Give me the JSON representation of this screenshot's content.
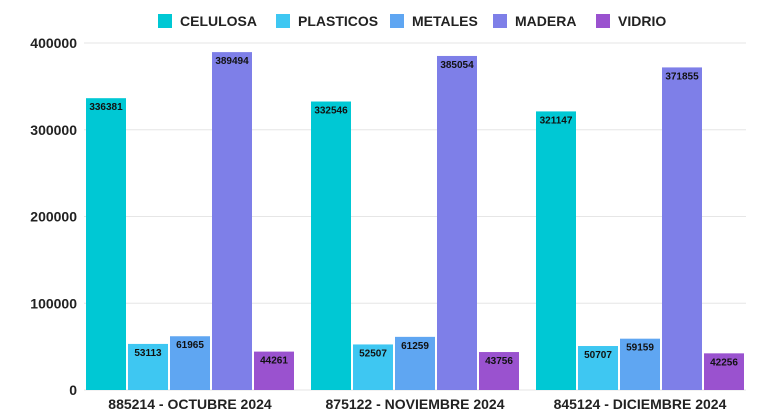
{
  "chart_data": {
    "type": "bar",
    "title": "",
    "xlabel": "",
    "ylabel": "",
    "categories": [
      "885214 - OCTUBRE 2024",
      "875122 - NOVIEMBRE 2024",
      "845124 - DICIEMBRE 2024"
    ],
    "series": [
      {
        "name": "CELULOSA",
        "color": "#00c8d4",
        "values": [
          336381,
          332546,
          321147
        ]
      },
      {
        "name": "PLASTICOS",
        "color": "#3ec7f2",
        "values": [
          53113,
          52507,
          50707
        ]
      },
      {
        "name": "METALES",
        "color": "#5fa6f2",
        "values": [
          61965,
          61259,
          59159
        ]
      },
      {
        "name": "MADERA",
        "color": "#7e7fe8",
        "values": [
          389494,
          385054,
          371855
        ]
      },
      {
        "name": "VIDRIO",
        "color": "#9a52cf",
        "values": [
          44261,
          43756,
          42256
        ]
      }
    ],
    "ylim": [
      0,
      400000
    ],
    "yticks": [
      "0",
      "100000",
      "200000",
      "300000",
      "400000"
    ],
    "grid": true,
    "legend_position": "top"
  }
}
